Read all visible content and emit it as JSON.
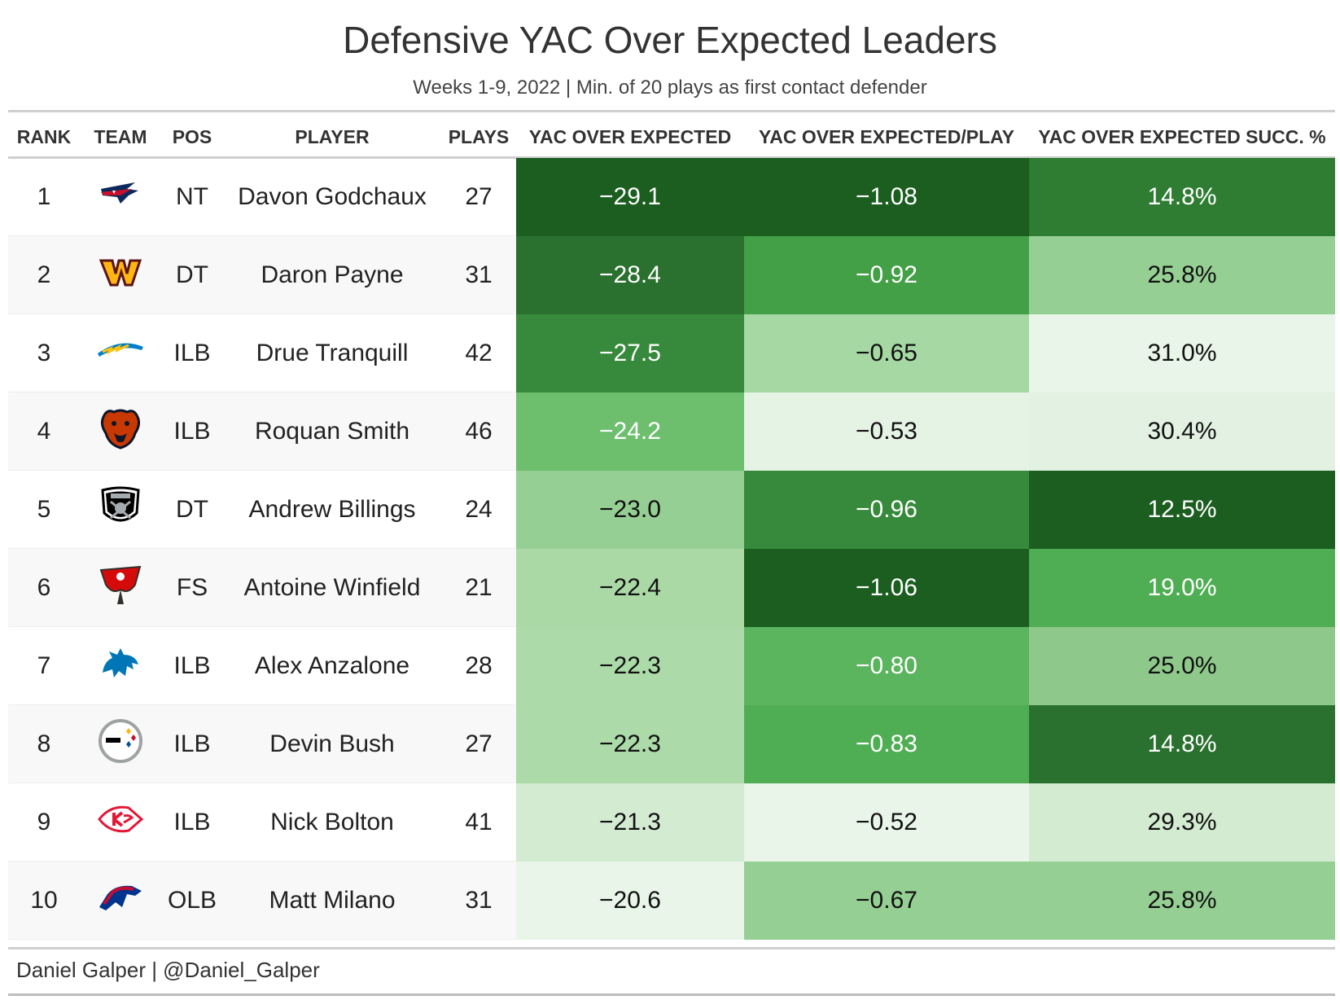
{
  "title": "Defensive YAC Over Expected Leaders",
  "subtitle": "Weeks 1-9, 2022 | Min. of 20 plays as first contact defender",
  "source": "Daniel Galper | @Daniel_Galper",
  "headers": {
    "rank": "RANK",
    "team": "TEAM",
    "pos": "POS",
    "player": "PLAYER",
    "plays": "PLAYS",
    "yoe": "YAC OVER EXPECTED",
    "yoe_play": "YAC OVER EXPECTED/PLAY",
    "yoe_succ": "YAC OVER EXPECTED SUCC. %"
  },
  "chart_data": {
    "type": "table",
    "columns": [
      "RANK",
      "TEAM",
      "POS",
      "PLAYER",
      "PLAYS",
      "YAC OVER EXPECTED",
      "YAC OVER EXPECTED/PLAY",
      "YAC OVER EXPECTED SUCC. %"
    ],
    "rows": [
      {
        "rank": "1",
        "team_logo": "patriots-logo-icon",
        "pos": "NT",
        "player": "Davon Godchaux",
        "plays": "27",
        "yoe": "−29.1",
        "yoe_play": "−1.08",
        "yoe_succ": "14.8%",
        "yoe_color": "#1b5e20",
        "yoe_play_color": "#1b5e20",
        "yoe_succ_color": "#2e7d32"
      },
      {
        "rank": "2",
        "team_logo": "commanders-logo-icon",
        "pos": "DT",
        "player": "Daron Payne",
        "plays": "31",
        "yoe": "−28.4",
        "yoe_play": "−0.92",
        "yoe_succ": "25.8%",
        "yoe_color": "#2a702e",
        "yoe_play_color": "#43a047",
        "yoe_succ_color": "#96cf93"
      },
      {
        "rank": "3",
        "team_logo": "chargers-logo-icon",
        "pos": "ILB",
        "player": "Drue Tranquill",
        "plays": "42",
        "yoe": "−27.5",
        "yoe_play": "−0.65",
        "yoe_succ": "31.0%",
        "yoe_color": "#378a3b",
        "yoe_play_color": "#a5d8a2",
        "yoe_succ_color": "#e8f5e8"
      },
      {
        "rank": "4",
        "team_logo": "bears-logo-icon",
        "pos": "ILB",
        "player": "Roquan Smith",
        "plays": "46",
        "yoe": "−24.2",
        "yoe_play": "−0.53",
        "yoe_succ": "30.4%",
        "yoe_color": "#6dbf6e",
        "yoe_play_color": "#e5f3e4",
        "yoe_succ_color": "#e2f1e1"
      },
      {
        "rank": "5",
        "team_logo": "raiders-logo-icon",
        "pos": "DT",
        "player": "Andrew Billings",
        "plays": "24",
        "yoe": "−23.0",
        "yoe_play": "−0.96",
        "yoe_succ": "12.5%",
        "yoe_color": "#96cf93",
        "yoe_play_color": "#378a3b",
        "yoe_succ_color": "#1b5e20"
      },
      {
        "rank": "6",
        "team_logo": "buccaneers-logo-icon",
        "pos": "FS",
        "player": "Antoine Winfield",
        "plays": "21",
        "yoe": "−22.4",
        "yoe_play": "−1.06",
        "yoe_succ": "19.0%",
        "yoe_color": "#aad9a6",
        "yoe_play_color": "#1b5e20",
        "yoe_succ_color": "#4fae53"
      },
      {
        "rank": "7",
        "team_logo": "lions-logo-icon",
        "pos": "ILB",
        "player": "Alex Anzalone",
        "plays": "28",
        "yoe": "−22.3",
        "yoe_play": "−0.80",
        "yoe_succ": "25.0%",
        "yoe_color": "#acdaa8",
        "yoe_play_color": "#5bb45e",
        "yoe_succ_color": "#8ec98b"
      },
      {
        "rank": "8",
        "team_logo": "steelers-logo-icon",
        "pos": "ILB",
        "player": "Devin Bush",
        "plays": "27",
        "yoe": "−22.3",
        "yoe_play": "−0.83",
        "yoe_succ": "14.8%",
        "yoe_color": "#acdaa8",
        "yoe_play_color": "#4fae53",
        "yoe_succ_color": "#2a702e"
      },
      {
        "rank": "9",
        "team_logo": "chiefs-logo-icon",
        "pos": "ILB",
        "player": "Nick Bolton",
        "plays": "41",
        "yoe": "−21.3",
        "yoe_play": "−0.52",
        "yoe_succ": "29.3%",
        "yoe_color": "#d3ebd1",
        "yoe_play_color": "#e8f5e8",
        "yoe_succ_color": "#d3ebd1"
      },
      {
        "rank": "10",
        "team_logo": "bills-logo-icon",
        "pos": "OLB",
        "player": "Matt Milano",
        "plays": "31",
        "yoe": "−20.6",
        "yoe_play": "−0.67",
        "yoe_succ": "25.8%",
        "yoe_color": "#e8f5e8",
        "yoe_play_color": "#96cf93",
        "yoe_succ_color": "#96cf93"
      }
    ]
  }
}
